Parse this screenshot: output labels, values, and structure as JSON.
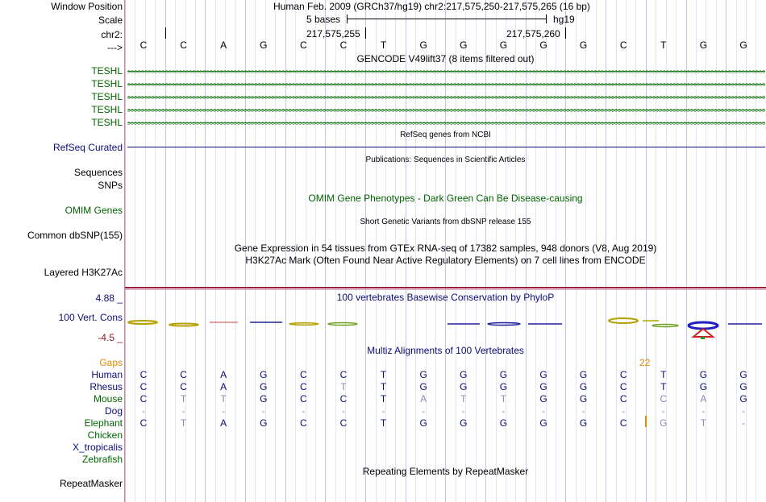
{
  "header": {
    "window_position_label": "Window Position",
    "window_position_value": "Human Feb. 2009 (GRCh37/hg19)   chr2:217,575,250-217,575,265 (16 bp)",
    "scale_label": "Scale",
    "scale_text": "5 bases",
    "scale_assembly": "hg19",
    "chrom_label": "chr2:",
    "coord_a": "217,575,255",
    "coord_b": "217,575,260",
    "strand_label": "--->"
  },
  "sequence": [
    "C",
    "C",
    "A",
    "G",
    "C",
    "C",
    "T",
    "G",
    "G",
    "G",
    "G",
    "G",
    "C",
    "T",
    "G",
    "G"
  ],
  "gencode": {
    "title": "GENCODE V49lift37 (8 items filtered out)",
    "tracks": [
      "TESHL",
      "TESHL",
      "TESHL",
      "TESHL",
      "TESHL"
    ]
  },
  "refseq": {
    "title": "RefSeq genes from NCBI",
    "label": "RefSeq Curated"
  },
  "publications": {
    "title": "Publications: Sequences in Scientific Articles",
    "label": "Sequences"
  },
  "snps_label": "SNPs",
  "omim": {
    "title": "OMIM Gene Phenotypes - Dark Green Can Be Disease-causing",
    "label": "OMIM Genes"
  },
  "dbsnp": {
    "title": "Short Genetic Variants from dbSNP release 155",
    "label": "Common dbSNP(155)"
  },
  "gtex_title": "Gene Expression in 54 tissues from GTEx RNA-seq of 17382 samples, 948 donors (V8, Aug 2019)",
  "h3k27ac": {
    "title": "H3K27Ac Mark (Often Found Near Active Regulatory Elements) on 7 cell lines from ENCODE",
    "label": "Layered H3K27Ac"
  },
  "phylop": {
    "title": "100 vertebrates Basewise Conservation by PhyloP",
    "label": "100 Vert. Cons",
    "max": "4.88 _",
    "min": "-4.5 _"
  },
  "multiz": {
    "title": "Multiz Alignments of 100 Vertebrates",
    "gaps_label": "Gaps",
    "gap_count": "22",
    "species": [
      {
        "name": "Human",
        "seq": [
          "C",
          "C",
          "A",
          "G",
          "C",
          "C",
          "T",
          "G",
          "G",
          "G",
          "G",
          "G",
          "C",
          "T",
          "G",
          "G"
        ]
      },
      {
        "name": "Rhesus",
        "seq": [
          "C",
          "C",
          "A",
          "G",
          "C",
          "T",
          "T",
          "G",
          "G",
          "G",
          "G",
          "G",
          "C",
          "T",
          "G",
          "G"
        ]
      },
      {
        "name": "Mouse",
        "seq": [
          "C",
          "T",
          "T",
          "G",
          "C",
          "C",
          "T",
          "A",
          "T",
          "T",
          "G",
          "G",
          "C",
          "C",
          "A",
          "G"
        ]
      },
      {
        "name": "Dog",
        "seq": [
          "-",
          "-",
          "-",
          "-",
          "-",
          "-",
          "-",
          "-",
          "-",
          "-",
          "-",
          "-",
          "-",
          "-",
          "-",
          "-"
        ]
      },
      {
        "name": "Elephant",
        "seq": [
          "C",
          "T",
          "A",
          "G",
          "C",
          "C",
          "T",
          "G",
          "G",
          "G",
          "G",
          "G",
          "C",
          "G",
          "T",
          "-"
        ]
      },
      {
        "name": "Chicken",
        "seq": []
      },
      {
        "name": "X_tropicalis",
        "seq": []
      },
      {
        "name": "Zebrafish",
        "seq": []
      }
    ]
  },
  "repeatmasker": {
    "title": "Repeating Elements by RepeatMasker",
    "label": "RepeatMasker"
  },
  "colors": {
    "label_green": "#006400",
    "label_navy": "#0c0c78",
    "gaps_orange": "#e08a00",
    "separator": "#9b1b3b"
  }
}
